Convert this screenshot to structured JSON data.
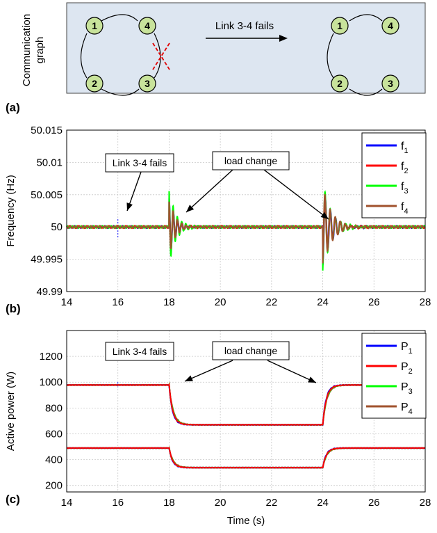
{
  "panel_a": {
    "tag": "(a)",
    "side_label_1": "Communication",
    "side_label_2": "graph",
    "event_label": "Link 3-4 fails",
    "nodes": [
      "1",
      "2",
      "3",
      "4"
    ],
    "colors": {
      "background": "#dde6f1",
      "node_fill": "#c8e39b",
      "fail_mark": "#e00000"
    }
  },
  "chart_data": [
    {
      "type": "line",
      "tag": "(b)",
      "ylabel": "Frequency (Hz)",
      "xlim": [
        14,
        28
      ],
      "ylim": [
        49.99,
        50.015
      ],
      "xticks": [
        "14",
        "16",
        "18",
        "20",
        "22",
        "24",
        "26",
        "28"
      ],
      "yticks": [
        "49.99",
        "49.995",
        "50",
        "50.005",
        "50.01",
        "50.015"
      ],
      "grid": true,
      "legend_position": "top-right",
      "series": [
        {
          "name": "f",
          "sub": "1",
          "color": "#0000ff",
          "phase": 0.0
        },
        {
          "name": "f",
          "sub": "2",
          "color": "#ff0000",
          "phase": 0.6
        },
        {
          "name": "f",
          "sub": "3",
          "color": "#00ff00",
          "phase": 1.3
        },
        {
          "name": "f",
          "sub": "4",
          "color": "#a0522d",
          "phase": 2.0
        }
      ],
      "baseline": 50,
      "events": [
        {
          "t": 18,
          "amp": [
            0.0045,
            0.004,
            0.006,
            0.0045
          ],
          "decay": 4.0,
          "freq": 6.0,
          "sign": 1
        },
        {
          "t": 24,
          "amp": [
            0.006,
            0.0055,
            0.007,
            0.0065
          ],
          "decay": 3.0,
          "freq": 5.0,
          "sign": -1
        }
      ],
      "annotations": [
        {
          "text": "Link 3-4 fails",
          "x": 16
        },
        {
          "text": "load change",
          "arrows_to": [
            18.4,
            24.1
          ]
        }
      ]
    },
    {
      "type": "line",
      "tag": "(c)",
      "ylabel": "Active power (W)",
      "xlabel": "Time (s)",
      "xlim": [
        14,
        28
      ],
      "ylim": [
        150,
        1400
      ],
      "xticks": [
        "14",
        "16",
        "18",
        "20",
        "22",
        "24",
        "26",
        "28"
      ],
      "yticks": [
        "200",
        "400",
        "600",
        "800",
        "1000",
        "1200"
      ],
      "grid": true,
      "legend_position": "top-right",
      "series": [
        {
          "name": "P",
          "sub": "1",
          "color": "#0000ff"
        },
        {
          "name": "P",
          "sub": "2",
          "color": "#ff0000"
        },
        {
          "name": "P",
          "sub": "3",
          "color": "#00ff00"
        },
        {
          "name": "P",
          "sub": "4",
          "color": "#a0522d"
        }
      ],
      "groups": [
        {
          "before": 978,
          "during": 670,
          "after": 978
        },
        {
          "before": 490,
          "during": 338,
          "after": 490
        }
      ],
      "step_times": [
        18,
        24
      ],
      "annotations": [
        {
          "text": "Link 3-4 fails",
          "x": 16
        },
        {
          "text": "load change",
          "arrows_to": [
            18.6,
            24.1
          ]
        }
      ]
    }
  ]
}
